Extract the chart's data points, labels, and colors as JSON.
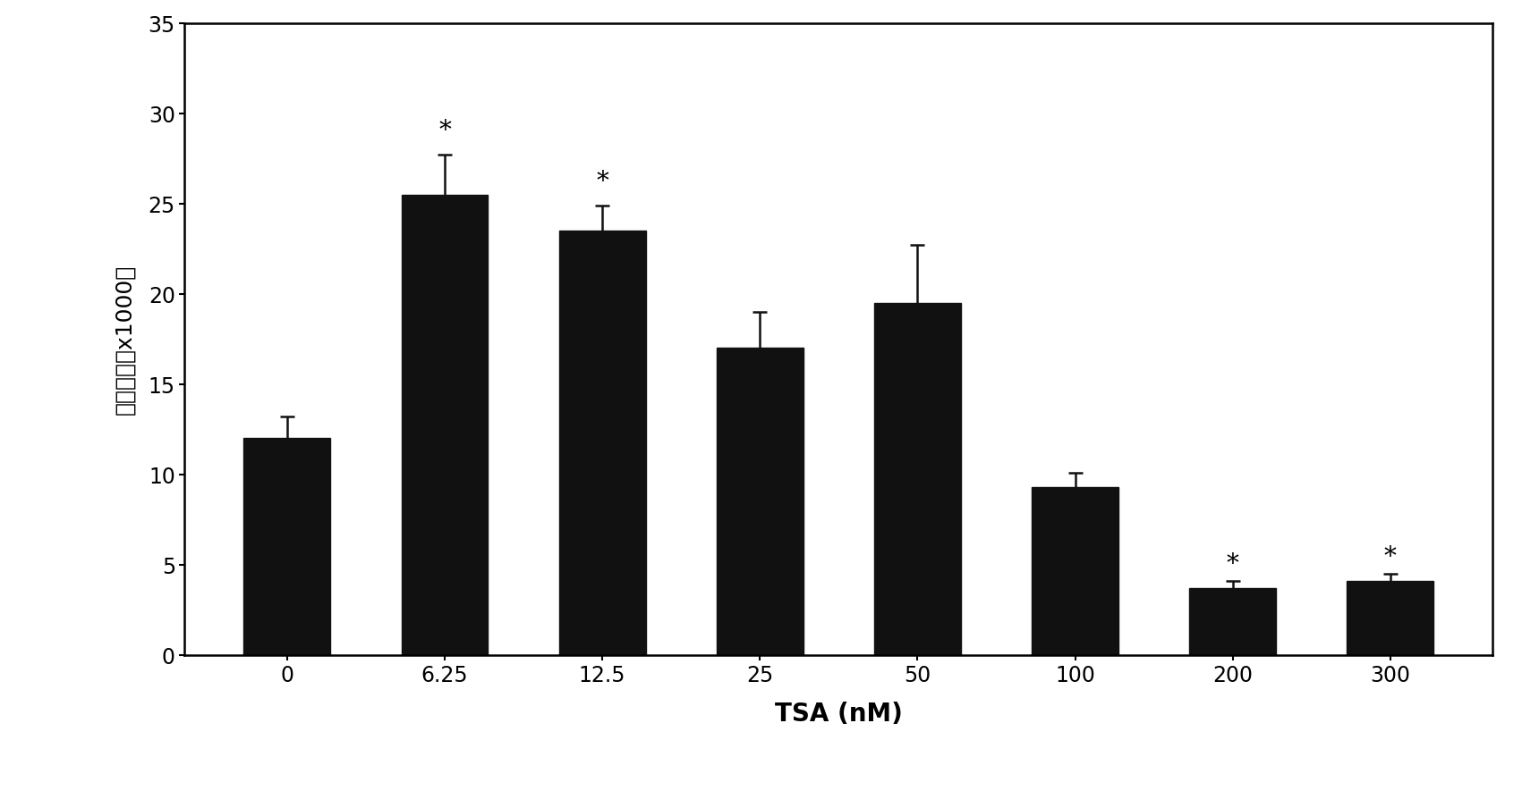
{
  "categories": [
    "0",
    "6.25",
    "12.5",
    "25",
    "50",
    "100",
    "200",
    "300"
  ],
  "values": [
    12.0,
    25.5,
    23.5,
    17.0,
    19.5,
    9.3,
    3.7,
    4.1
  ],
  "errors": [
    1.2,
    2.2,
    1.4,
    2.0,
    3.2,
    0.8,
    0.4,
    0.4
  ],
  "bar_color": "#111111",
  "error_color": "#111111",
  "xlabel": "TSA (nM)",
  "ylabel": "细胞数量（x1000）",
  "ylim": [
    0,
    35
  ],
  "yticks": [
    0,
    5,
    10,
    15,
    20,
    25,
    30,
    35
  ],
  "significant_high": [
    1,
    2
  ],
  "significant_low": [
    6,
    7
  ],
  "star_fontsize": 20,
  "xlabel_fontsize": 20,
  "ylabel_fontsize": 18,
  "tick_fontsize": 17,
  "background_color": "#ffffff",
  "bar_width": 0.55
}
